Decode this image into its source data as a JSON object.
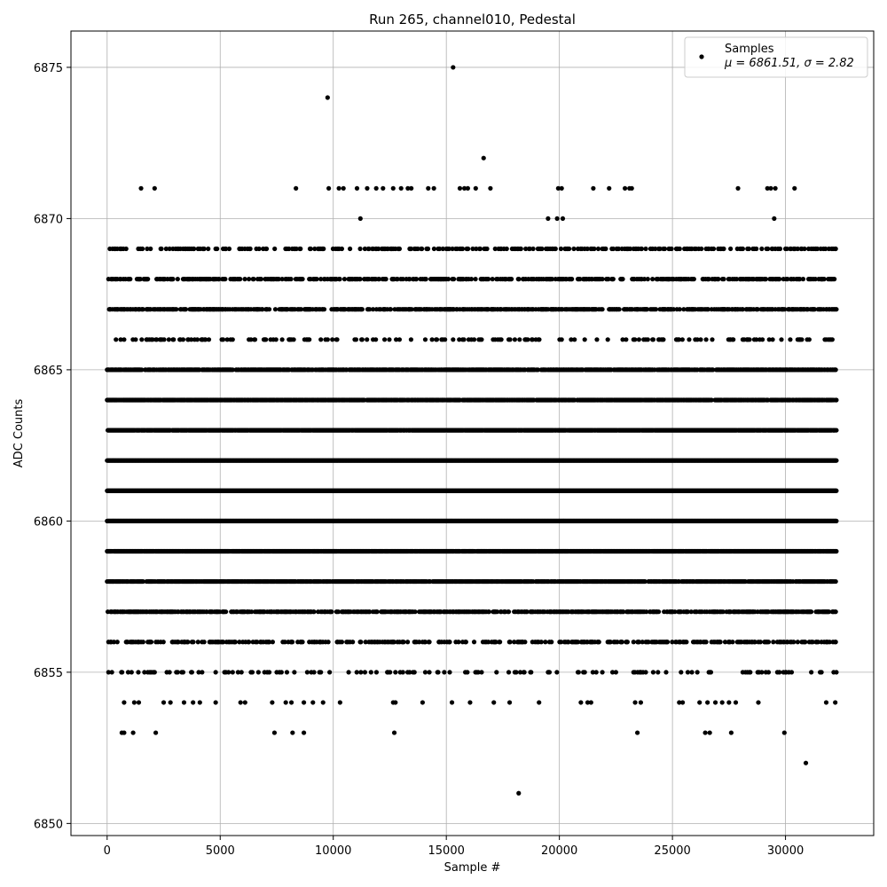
{
  "chart_data": {
    "type": "scatter",
    "title": "Run 265, channel010, Pedestal",
    "xlabel": "Sample #",
    "ylabel": "ADC Counts",
    "xlim": [
      -1600,
      33900
    ],
    "ylim": [
      6849.6,
      6876.2
    ],
    "xticks": [
      0,
      5000,
      10000,
      15000,
      20000,
      25000,
      30000
    ],
    "yticks": [
      6850,
      6855,
      6860,
      6865,
      6870,
      6875
    ],
    "grid": true,
    "legend": {
      "position": "top-right",
      "series_label": "Samples",
      "stats_label": "μ = 6861.51, σ = 2.82"
    },
    "series": [
      {
        "name": "Samples",
        "color": "#000000",
        "marker": "circle",
        "stats": {
          "mu": 6861.51,
          "sigma": 2.82
        },
        "sample_count": 32250,
        "band_levels": [
          {
            "y": 6855,
            "density": 0.13
          },
          {
            "y": 6856,
            "density": 0.3
          },
          {
            "y": 6857,
            "density": 0.55
          },
          {
            "y": 6858,
            "density": 0.82
          },
          {
            "y": 6859,
            "density": 0.97
          },
          {
            "y": 6860,
            "density": 1.0
          },
          {
            "y": 6861,
            "density": 1.0
          },
          {
            "y": 6862,
            "density": 1.0
          },
          {
            "y": 6863,
            "density": 0.95
          },
          {
            "y": 6864,
            "density": 0.85
          },
          {
            "y": 6865,
            "density": 0.72
          },
          {
            "y": 6866,
            "density": 0.15
          },
          {
            "y": 6867,
            "density": 0.5
          },
          {
            "y": 6868,
            "density": 0.38
          },
          {
            "y": 6869,
            "density": 0.25
          }
        ],
        "points": [
          [
            15300,
            6875
          ],
          [
            9750,
            6874
          ],
          [
            16650,
            6872
          ],
          [
            1500,
            6871
          ],
          [
            2100,
            6871
          ],
          [
            8350,
            6871
          ],
          [
            9800,
            6871
          ],
          [
            10250,
            6871
          ],
          [
            10450,
            6871
          ],
          [
            11050,
            6871
          ],
          [
            11500,
            6871
          ],
          [
            11900,
            6871
          ],
          [
            12200,
            6871
          ],
          [
            12650,
            6871
          ],
          [
            13000,
            6871
          ],
          [
            13300,
            6871
          ],
          [
            13450,
            6871
          ],
          [
            14200,
            6871
          ],
          [
            14450,
            6871
          ],
          [
            15600,
            6871
          ],
          [
            15800,
            6871
          ],
          [
            15950,
            6871
          ],
          [
            16300,
            6871
          ],
          [
            16950,
            6871
          ],
          [
            19950,
            6871
          ],
          [
            20100,
            6871
          ],
          [
            21500,
            6871
          ],
          [
            22200,
            6871
          ],
          [
            22900,
            6871
          ],
          [
            23100,
            6871
          ],
          [
            23200,
            6871
          ],
          [
            27900,
            6871
          ],
          [
            29200,
            6871
          ],
          [
            29350,
            6871
          ],
          [
            29550,
            6871
          ],
          [
            30400,
            6871
          ],
          [
            11200,
            6870
          ],
          [
            19500,
            6870
          ],
          [
            19900,
            6870
          ],
          [
            20150,
            6870
          ],
          [
            29500,
            6870
          ],
          [
            750,
            6854
          ],
          [
            1200,
            6854
          ],
          [
            1400,
            6854
          ],
          [
            2500,
            6854
          ],
          [
            2800,
            6854
          ],
          [
            3400,
            6854
          ],
          [
            3800,
            6854
          ],
          [
            4100,
            6854
          ],
          [
            4800,
            6854
          ],
          [
            5900,
            6854
          ],
          [
            6100,
            6854
          ],
          [
            7300,
            6854
          ],
          [
            7900,
            6854
          ],
          [
            8150,
            6854
          ],
          [
            8700,
            6854
          ],
          [
            9100,
            6854
          ],
          [
            9550,
            6854
          ],
          [
            10300,
            6854
          ],
          [
            12650,
            6854
          ],
          [
            12750,
            6854
          ],
          [
            13950,
            6854
          ],
          [
            15250,
            6854
          ],
          [
            16050,
            6854
          ],
          [
            17100,
            6854
          ],
          [
            17800,
            6854
          ],
          [
            19100,
            6854
          ],
          [
            20950,
            6854
          ],
          [
            21250,
            6854
          ],
          [
            21400,
            6854
          ],
          [
            23350,
            6854
          ],
          [
            23600,
            6854
          ],
          [
            25300,
            6854
          ],
          [
            25450,
            6854
          ],
          [
            26200,
            6854
          ],
          [
            26550,
            6854
          ],
          [
            26900,
            6854
          ],
          [
            27200,
            6854
          ],
          [
            27500,
            6854
          ],
          [
            27800,
            6854
          ],
          [
            28800,
            6854
          ],
          [
            31800,
            6854
          ],
          [
            32200,
            6854
          ],
          [
            650,
            6853
          ],
          [
            750,
            6853
          ],
          [
            1150,
            6853
          ],
          [
            2150,
            6853
          ],
          [
            7400,
            6853
          ],
          [
            8200,
            6853
          ],
          [
            8700,
            6853
          ],
          [
            12700,
            6853
          ],
          [
            23450,
            6853
          ],
          [
            26450,
            6853
          ],
          [
            26650,
            6853
          ],
          [
            27600,
            6853
          ],
          [
            29950,
            6853
          ],
          [
            30900,
            6852
          ],
          [
            18200,
            6851
          ]
        ]
      }
    ]
  }
}
